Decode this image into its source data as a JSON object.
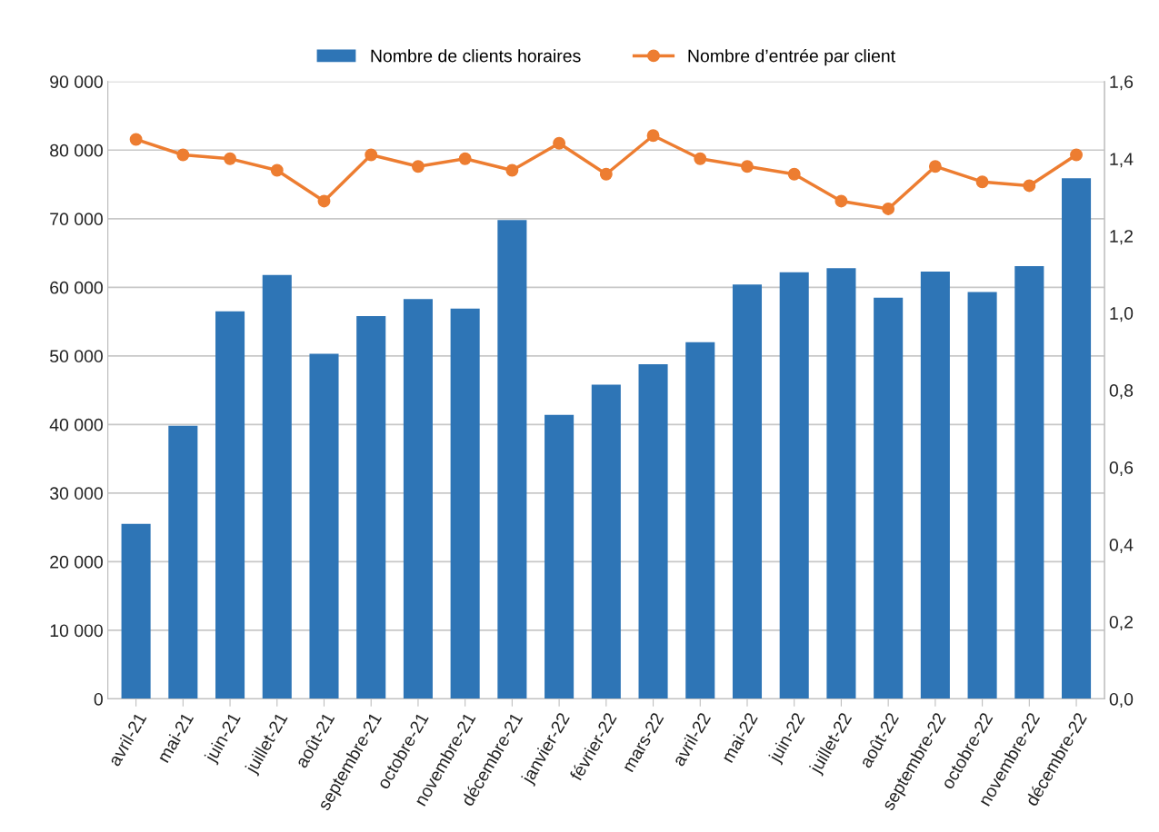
{
  "chart_data": {
    "type": "bar",
    "categories": [
      "avril-21",
      "mai-21",
      "juin-21",
      "juillet-21",
      "août-21",
      "septembre-21",
      "octobre-21",
      "novembre-21",
      "décembre-21",
      "janvier-22",
      "février-22",
      "mars-22",
      "avril-22",
      "mai-22",
      "juin-22",
      "juillet-22",
      "août-22",
      "septembre-22",
      "octobre-22",
      "novembre-22",
      "décembre-22"
    ],
    "series": [
      {
        "name": "Nombre de clients horaires",
        "color": "#2e75b6",
        "values": [
          25500,
          39800,
          56500,
          61800,
          50300,
          55800,
          58300,
          56900,
          69800,
          41400,
          45800,
          48800,
          52000,
          60400,
          62200,
          62800,
          58500,
          62300,
          59300,
          63100,
          75900
        ]
      },
      {
        "name": "Nombre d’entrée par client",
        "type": "line",
        "axis": "y2",
        "color": "#ed7d31",
        "marker": "circle",
        "values": [
          1.45,
          1.41,
          1.4,
          1.37,
          1.29,
          1.41,
          1.38,
          1.4,
          1.37,
          1.44,
          1.36,
          1.46,
          1.4,
          1.38,
          1.36,
          1.29,
          1.27,
          1.38,
          1.34,
          1.33,
          1.41
        ]
      }
    ],
    "ylim": [
      0,
      90000
    ],
    "yticks": [
      {
        "value": 0,
        "label": "0"
      },
      {
        "value": 10000,
        "label": "10 000"
      },
      {
        "value": 20000,
        "label": "20 000"
      },
      {
        "value": 30000,
        "label": "30 000"
      },
      {
        "value": 40000,
        "label": "40 000"
      },
      {
        "value": 50000,
        "label": "50 000"
      },
      {
        "value": 60000,
        "label": "60 000"
      },
      {
        "value": 70000,
        "label": "70 000"
      },
      {
        "value": 80000,
        "label": "80 000"
      },
      {
        "value": 90000,
        "label": "90 000"
      }
    ],
    "y2lim": [
      0,
      1.6
    ],
    "y2ticks": [
      {
        "value": 0,
        "label": "0,0"
      },
      {
        "value": 0.2,
        "label": "0,2"
      },
      {
        "value": 0.4,
        "label": "0,4"
      },
      {
        "value": 0.6,
        "label": "0,6"
      },
      {
        "value": 0.8,
        "label": "0,8"
      },
      {
        "value": 1.0,
        "label": "1,0"
      },
      {
        "value": 1.2,
        "label": "1,2"
      },
      {
        "value": 1.4,
        "label": "1,4"
      },
      {
        "value": 1.6,
        "label": "1,6"
      }
    ],
    "grid": "y",
    "legend": "top"
  }
}
